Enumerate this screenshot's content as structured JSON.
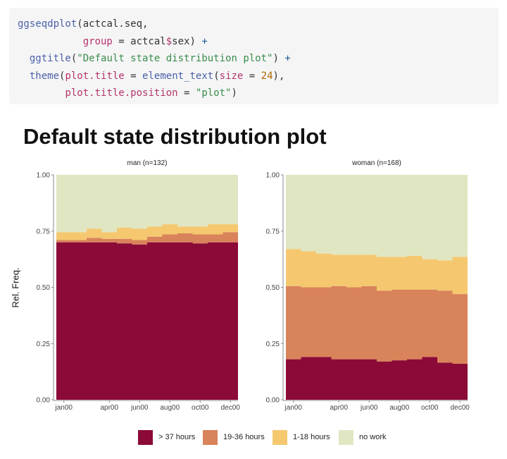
{
  "code": {
    "lines": [
      [
        {
          "t": "ggseqdplot",
          "c": "fn"
        },
        {
          "t": "(actcal.seq,",
          "c": ""
        }
      ],
      [
        {
          "t": "           ",
          "c": ""
        },
        {
          "t": "group",
          "c": "arg"
        },
        {
          "t": " = actcal",
          "c": ""
        },
        {
          "t": "$",
          "c": "arg"
        },
        {
          "t": "sex) ",
          "c": ""
        },
        {
          "t": "+",
          "c": "op"
        }
      ],
      [
        {
          "t": "  ",
          "c": ""
        },
        {
          "t": "ggtitle",
          "c": "fn"
        },
        {
          "t": "(",
          "c": ""
        },
        {
          "t": "\"Default state distribution plot\"",
          "c": "str"
        },
        {
          "t": ") ",
          "c": ""
        },
        {
          "t": "+",
          "c": "op"
        }
      ],
      [
        {
          "t": "  ",
          "c": ""
        },
        {
          "t": "theme",
          "c": "fn"
        },
        {
          "t": "(",
          "c": ""
        },
        {
          "t": "plot.title",
          "c": "arg"
        },
        {
          "t": " = ",
          "c": ""
        },
        {
          "t": "element_text",
          "c": "fn"
        },
        {
          "t": "(",
          "c": ""
        },
        {
          "t": "size",
          "c": "arg"
        },
        {
          "t": " = ",
          "c": ""
        },
        {
          "t": "24",
          "c": "num"
        },
        {
          "t": "),",
          "c": ""
        }
      ],
      [
        {
          "t": "        ",
          "c": ""
        },
        {
          "t": "plot.title.position",
          "c": "arg"
        },
        {
          "t": " = ",
          "c": ""
        },
        {
          "t": "\"plot\"",
          "c": "str"
        },
        {
          "t": ")",
          "c": ""
        }
      ]
    ]
  },
  "chart_data": {
    "type": "area",
    "title": "Default state distribution plot",
    "ylabel": "Rel. Freq.",
    "ylim": [
      0,
      1
    ],
    "yticks": [
      "0.00",
      "0.25",
      "0.50",
      "0.75",
      "1.00"
    ],
    "xticks": [
      {
        "month": 1,
        "label": "jan00"
      },
      {
        "month": 4,
        "label": "apr00"
      },
      {
        "month": 6,
        "label": "jun00"
      },
      {
        "month": 8,
        "label": "aug00"
      },
      {
        "month": 10,
        "label": "oct00"
      },
      {
        "month": 12,
        "label": "dec00"
      }
    ],
    "states": [
      {
        "name": "> 37 hours",
        "color": "#8b0a38"
      },
      {
        "name": "19-36 hours",
        "color": "#d9835a"
      },
      {
        "name": "1-18 hours",
        "color": "#f5c870"
      },
      {
        "name": "no work",
        "color": "#e0e6c2"
      }
    ],
    "panels": [
      {
        "strip": "man (n=132)",
        "cumulative_boundaries": [
          [
            0.7,
            0.7,
            0.7,
            0.7,
            0.695,
            0.69,
            0.7,
            0.7,
            0.7,
            0.695,
            0.7,
            0.7
          ],
          [
            0.71,
            0.71,
            0.72,
            0.715,
            0.715,
            0.71,
            0.725,
            0.735,
            0.74,
            0.735,
            0.735,
            0.745
          ],
          [
            0.745,
            0.745,
            0.76,
            0.745,
            0.765,
            0.76,
            0.77,
            0.78,
            0.77,
            0.77,
            0.78,
            0.78
          ]
        ]
      },
      {
        "strip": "woman (n=168)",
        "cumulative_boundaries": [
          [
            0.18,
            0.19,
            0.19,
            0.18,
            0.18,
            0.18,
            0.17,
            0.175,
            0.18,
            0.19,
            0.165,
            0.16
          ],
          [
            0.505,
            0.5,
            0.5,
            0.505,
            0.5,
            0.505,
            0.485,
            0.49,
            0.49,
            0.49,
            0.485,
            0.47
          ],
          [
            0.67,
            0.66,
            0.65,
            0.645,
            0.645,
            0.645,
            0.635,
            0.635,
            0.64,
            0.625,
            0.62,
            0.635
          ]
        ]
      }
    ],
    "legend_position": "bottom"
  }
}
